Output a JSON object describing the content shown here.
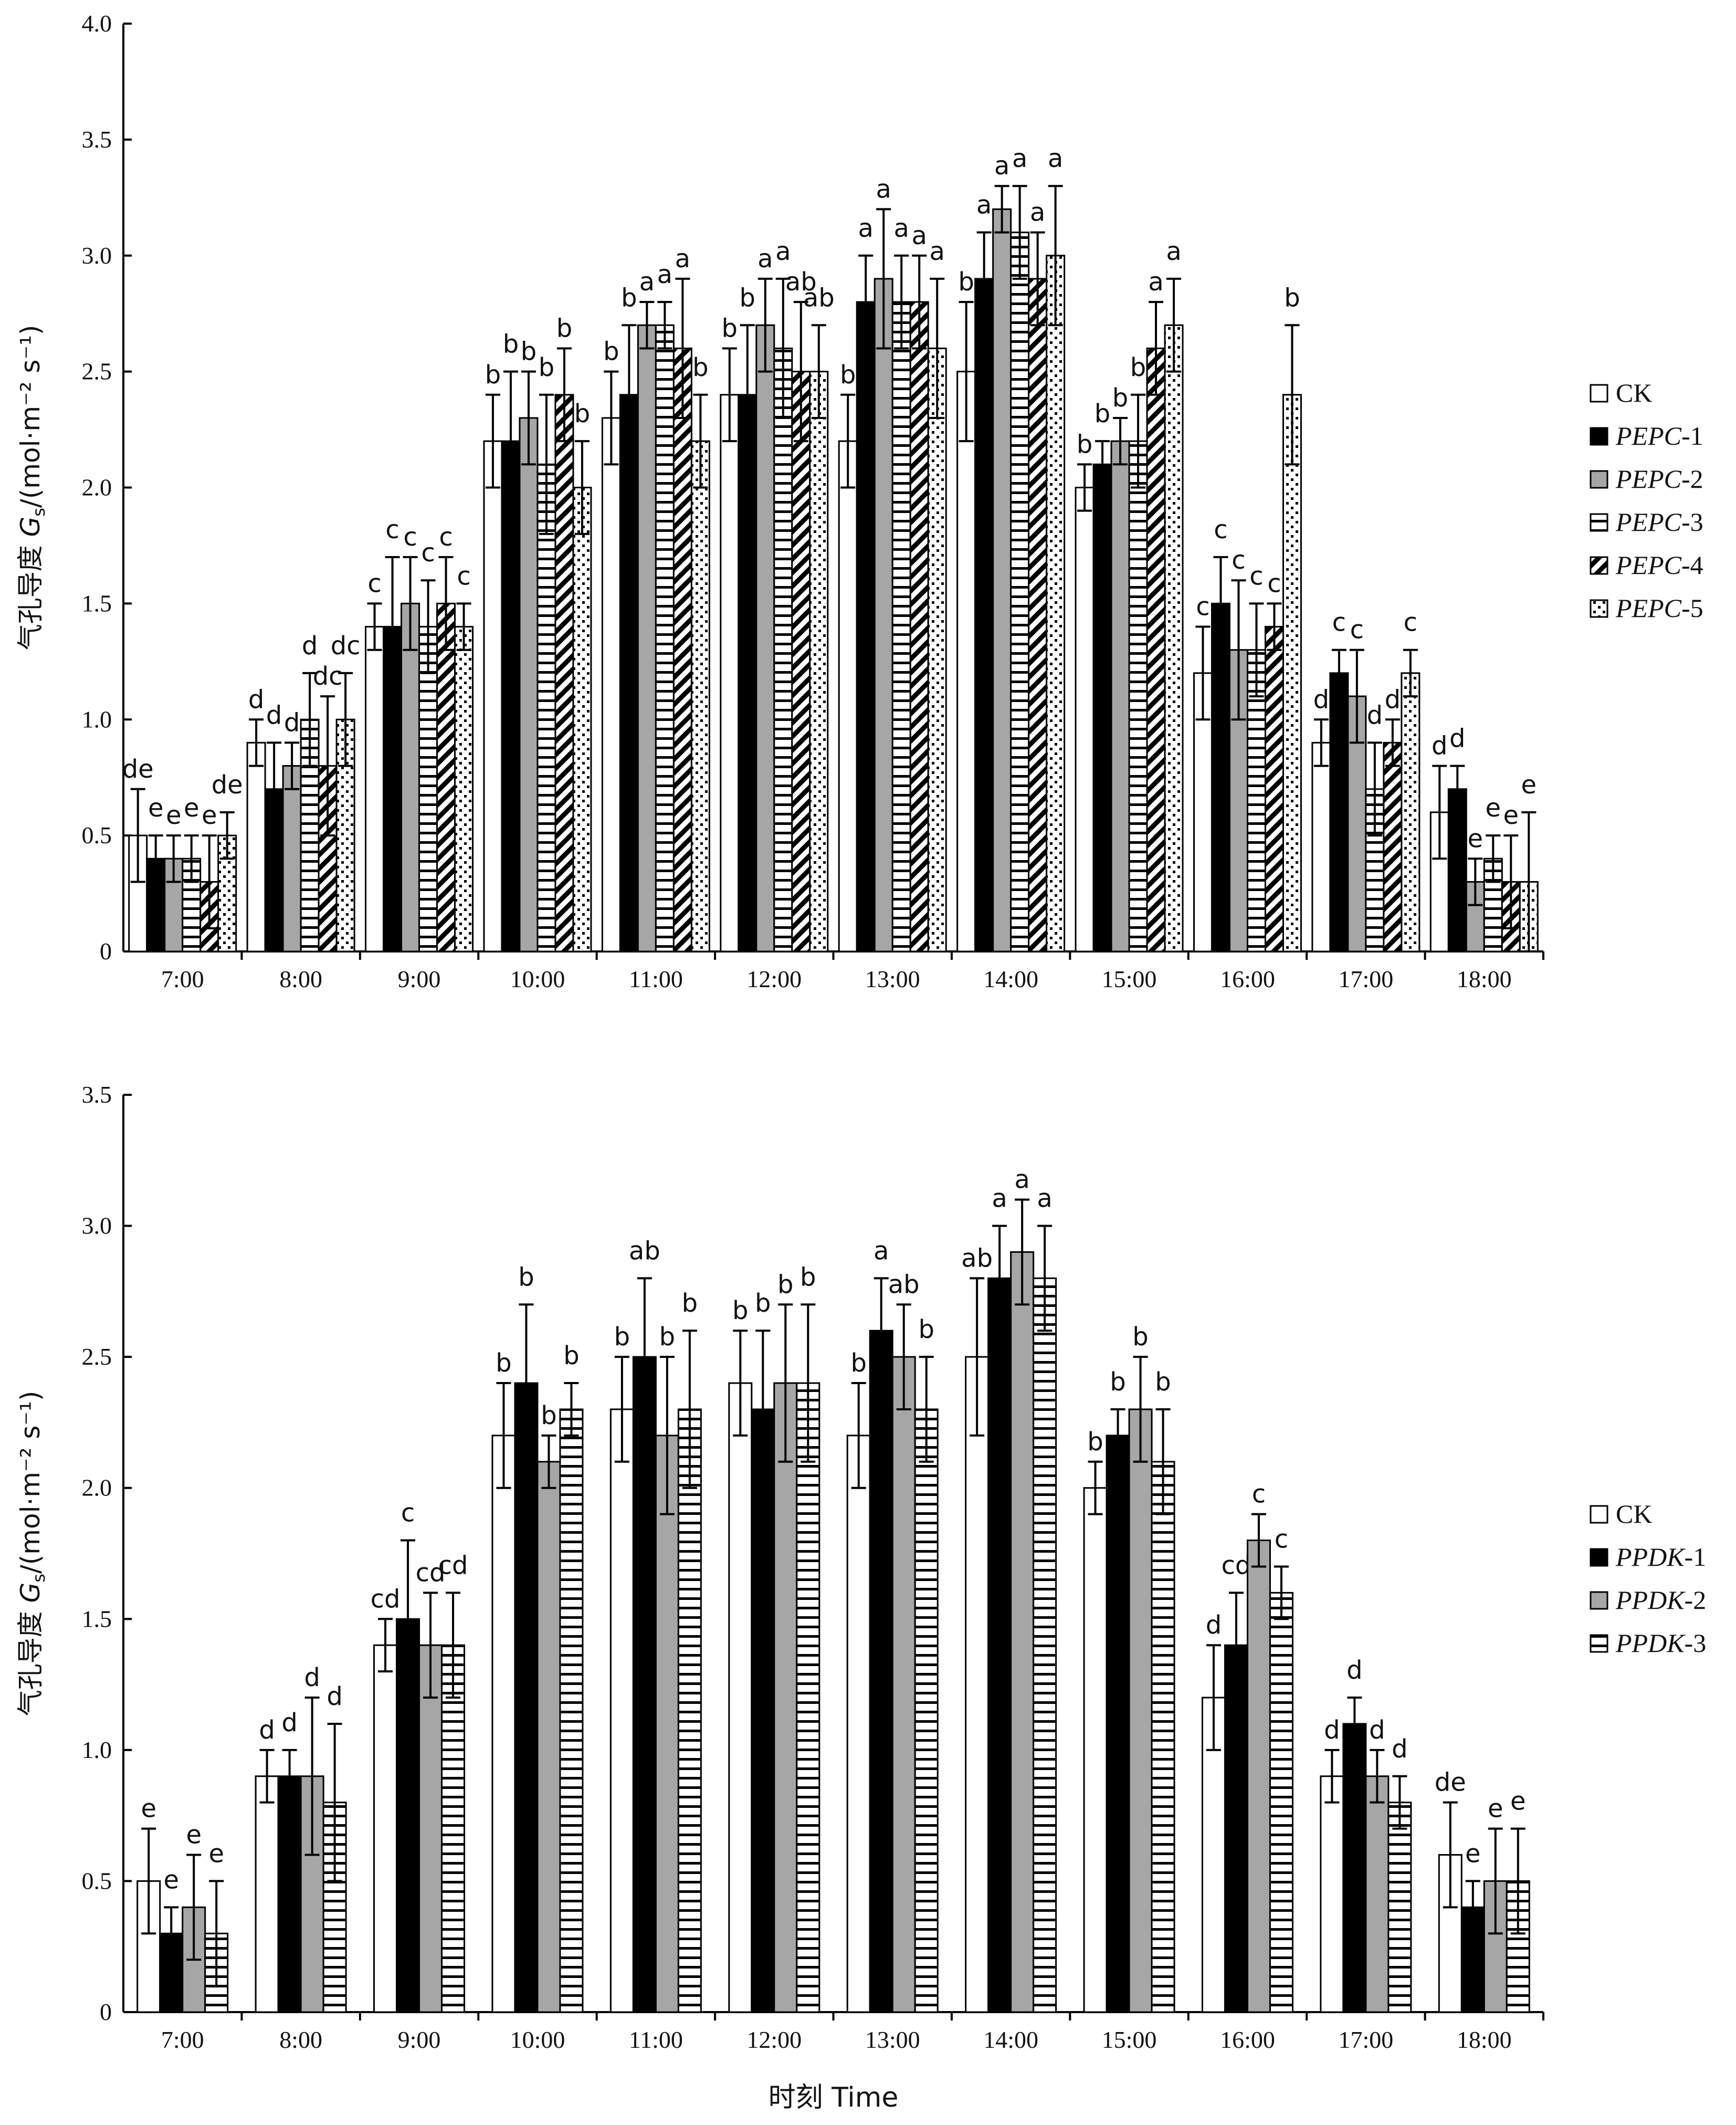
{
  "chart_data": [
    {
      "type": "bar",
      "ylabel": "气孔导度 Gs/(mol·m⁻² s⁻¹)",
      "ylim": [
        0,
        4.0
      ],
      "yticks": [
        "0",
        "0.5",
        "1.0",
        "1.5",
        "2.0",
        "2.5",
        "3.0",
        "3.5",
        "4.0"
      ],
      "categories": [
        "7:00",
        "8:00",
        "9:00",
        "10:00",
        "11:00",
        "12:00",
        "13:00",
        "14:00",
        "15:00",
        "16:00",
        "17:00",
        "18:00"
      ],
      "series": [
        {
          "name": "CK",
          "pattern": "white",
          "values": [
            0.5,
            0.9,
            1.4,
            2.2,
            2.3,
            2.4,
            2.2,
            2.5,
            2.0,
            1.2,
            0.9,
            0.6
          ],
          "errors": [
            0.2,
            0.1,
            0.1,
            0.2,
            0.2,
            0.2,
            0.2,
            0.3,
            0.1,
            0.2,
            0.1,
            0.2
          ],
          "letters": [
            "de",
            "d",
            "c",
            "b",
            "b",
            "b",
            "b",
            "b",
            "b",
            "c",
            "d",
            "d"
          ]
        },
        {
          "name": "PEPC-1",
          "pattern": "black",
          "values": [
            0.4,
            0.7,
            1.4,
            2.2,
            2.4,
            2.4,
            2.8,
            2.9,
            2.1,
            1.5,
            1.2,
            0.7
          ],
          "errors": [
            0.1,
            0.2,
            0.3,
            0.3,
            0.3,
            0.3,
            0.2,
            0.2,
            0.1,
            0.2,
            0.1,
            0.1
          ],
          "letters": [
            "e",
            "d",
            "c",
            "b",
            "b",
            "b",
            "a",
            "a",
            "b",
            "c",
            "c",
            "d"
          ]
        },
        {
          "name": "PEPC-2",
          "pattern": "gray",
          "values": [
            0.4,
            0.8,
            1.5,
            2.3,
            2.7,
            2.7,
            2.9,
            3.2,
            2.2,
            1.3,
            1.1,
            0.3
          ],
          "errors": [
            0.1,
            0.1,
            0.2,
            0.2,
            0.1,
            0.2,
            0.3,
            0.1,
            0.1,
            0.3,
            0.2,
            0.1
          ],
          "letters": [
            "e",
            "d",
            "c",
            "b",
            "a",
            "a",
            "a",
            "a",
            "b",
            "c",
            "c",
            "e"
          ]
        },
        {
          "name": "PEPC-3",
          "pattern": "hstripe",
          "values": [
            0.4,
            1.0,
            1.4,
            2.1,
            2.7,
            2.6,
            2.8,
            3.1,
            2.2,
            1.3,
            0.7,
            0.4
          ],
          "errors": [
            0.1,
            0.2,
            0.2,
            0.3,
            0.1,
            0.3,
            0.2,
            0.2,
            0.2,
            0.2,
            0.2,
            0.1
          ],
          "letters": [
            "e",
            "d",
            "c",
            "b",
            "a",
            "a",
            "a",
            "a",
            "b",
            "c",
            "d",
            "e"
          ]
        },
        {
          "name": "PEPC-4",
          "pattern": "diagonal",
          "values": [
            0.3,
            0.8,
            1.5,
            2.4,
            2.6,
            2.5,
            2.8,
            2.9,
            2.6,
            1.4,
            0.9,
            0.3
          ],
          "errors": [
            0.2,
            0.3,
            0.2,
            0.2,
            0.3,
            0.3,
            0.2,
            0.2,
            0.2,
            0.1,
            0.1,
            0.2
          ],
          "letters": [
            "e",
            "dc",
            "c",
            "b",
            "a",
            "ab",
            "a",
            "a",
            "a",
            "c",
            "d",
            "e"
          ]
        },
        {
          "name": "PEPC-5",
          "pattern": "dotted",
          "values": [
            0.5,
            1.0,
            1.4,
            2.0,
            2.2,
            2.5,
            2.6,
            3.0,
            2.7,
            2.4,
            1.2,
            0.3
          ],
          "errors": [
            0.1,
            0.2,
            0.1,
            0.2,
            0.2,
            0.2,
            0.3,
            0.3,
            0.2,
            0.3,
            0.1,
            0.3
          ],
          "letters": [
            "de",
            "dc",
            "c",
            "b",
            "b",
            "ab",
            "a",
            "a",
            "a",
            "b",
            "c",
            "e"
          ]
        }
      ]
    },
    {
      "type": "bar",
      "ylabel": "气孔导度 Gs/(mol·m⁻² s⁻¹)",
      "ylim": [
        0,
        3.5
      ],
      "yticks": [
        "0",
        "0.5",
        "1.0",
        "1.5",
        "2.0",
        "2.5",
        "3.0",
        "3.5"
      ],
      "categories": [
        "7:00",
        "8:00",
        "9:00",
        "10:00",
        "11:00",
        "12:00",
        "13:00",
        "14:00",
        "15:00",
        "16:00",
        "17:00",
        "18:00"
      ],
      "xlabel": "时刻 Time",
      "series": [
        {
          "name": "CK",
          "pattern": "white",
          "values": [
            0.5,
            0.9,
            1.4,
            2.2,
            2.3,
            2.4,
            2.2,
            2.5,
            2.0,
            1.2,
            0.9,
            0.6
          ],
          "errors": [
            0.2,
            0.1,
            0.1,
            0.2,
            0.2,
            0.2,
            0.2,
            0.3,
            0.1,
            0.2,
            0.1,
            0.2
          ],
          "letters": [
            "e",
            "d",
            "cd",
            "b",
            "b",
            "b",
            "b",
            "ab",
            "b",
            "d",
            "d",
            "de"
          ]
        },
        {
          "name": "PPDK-1",
          "pattern": "black",
          "values": [
            0.3,
            0.9,
            1.5,
            2.4,
            2.5,
            2.3,
            2.6,
            2.8,
            2.2,
            1.4,
            1.1,
            0.4
          ],
          "errors": [
            0.1,
            0.1,
            0.3,
            0.3,
            0.3,
            0.3,
            0.2,
            0.2,
            0.1,
            0.2,
            0.1,
            0.1
          ],
          "letters": [
            "e",
            "d",
            "c",
            "b",
            "ab",
            "b",
            "a",
            "a",
            "b",
            "cd",
            "d",
            "e"
          ]
        },
        {
          "name": "PPDK-2",
          "pattern": "gray",
          "values": [
            0.4,
            0.9,
            1.4,
            2.1,
            2.2,
            2.4,
            2.5,
            2.9,
            2.3,
            1.8,
            0.9,
            0.5
          ],
          "errors": [
            0.2,
            0.3,
            0.2,
            0.1,
            0.3,
            0.3,
            0.2,
            0.2,
            0.2,
            0.1,
            0.1,
            0.2
          ],
          "letters": [
            "e",
            "d",
            "cd",
            "b",
            "b",
            "b",
            "ab",
            "a",
            "b",
            "c",
            "d",
            "e"
          ]
        },
        {
          "name": "PPDK-3",
          "pattern": "hstripe",
          "values": [
            0.3,
            0.8,
            1.4,
            2.3,
            2.3,
            2.4,
            2.3,
            2.8,
            2.1,
            1.6,
            0.8,
            0.5
          ],
          "errors": [
            0.2,
            0.3,
            0.2,
            0.1,
            0.3,
            0.3,
            0.2,
            0.2,
            0.2,
            0.1,
            0.1,
            0.2
          ],
          "letters": [
            "e",
            "d",
            "cd",
            "b",
            "b",
            "b",
            "b",
            "a",
            "b",
            "c",
            "d",
            "e"
          ]
        }
      ]
    }
  ]
}
